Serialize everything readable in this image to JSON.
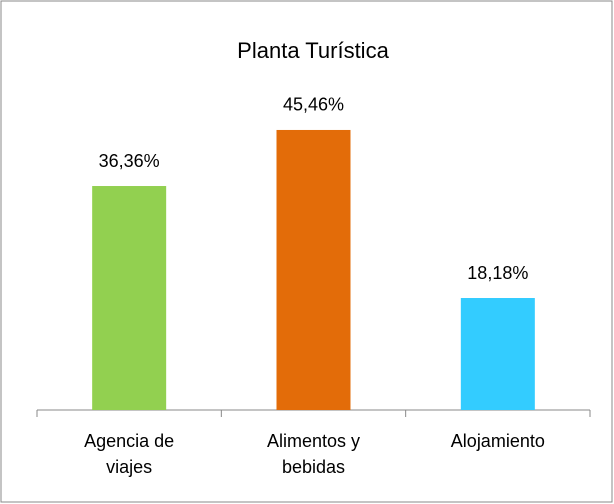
{
  "chart_data": {
    "type": "bar",
    "title": "Planta Turística",
    "categories": [
      "Agencia de viajes",
      "Alimentos y bebidas",
      "Alojamiento"
    ],
    "values": [
      36.36,
      45.46,
      18.18
    ],
    "value_labels": [
      "36,36%",
      "45,46%",
      "18,18%"
    ],
    "colors": [
      "#92d050",
      "#e36c09",
      "#33ccff"
    ],
    "ylim": [
      0,
      50
    ]
  }
}
